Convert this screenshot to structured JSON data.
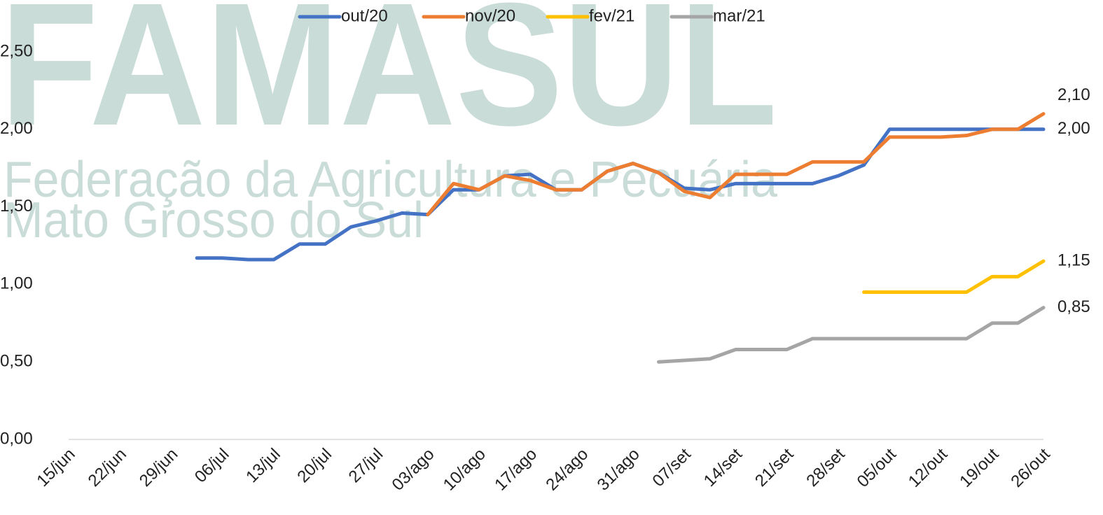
{
  "chart_data": {
    "type": "line",
    "watermark": {
      "title": "FAMASUL",
      "lines": [
        "Federação da Agricultura e Pecuária",
        "Mato Grosso do Sul"
      ]
    },
    "categories": [
      "15/jun",
      null,
      "22/jun",
      null,
      "29/jun",
      null,
      "06/jul",
      null,
      "13/jul",
      null,
      "20/jul",
      null,
      "27/jul",
      null,
      "03/ago",
      null,
      "10/ago",
      null,
      "17/ago",
      null,
      "24/ago",
      null,
      "31/ago",
      null,
      "07/set",
      null,
      "14/set",
      null,
      "21/set",
      null,
      "28/set",
      null,
      "05/out",
      null,
      "12/out",
      null,
      "19/out",
      null,
      "26/out"
    ],
    "series": [
      {
        "name": "out/20",
        "color": "#4472c4",
        "values": [
          null,
          null,
          null,
          null,
          null,
          1.17,
          1.17,
          1.16,
          1.16,
          1.26,
          1.26,
          1.37,
          1.41,
          1.46,
          1.45,
          1.61,
          1.61,
          1.7,
          1.71,
          1.61,
          1.61,
          1.73,
          1.78,
          1.72,
          1.62,
          1.61,
          1.65,
          1.65,
          1.65,
          1.65,
          1.7,
          1.77,
          2.0,
          2.0,
          2.0,
          2.0,
          2.0,
          2.0,
          2.0
        ],
        "value_labels": [
          null,
          null,
          null,
          null,
          null,
          null,
          null,
          null,
          null,
          null,
          null,
          null,
          null,
          null,
          null,
          null,
          null,
          null,
          null,
          null,
          null,
          null,
          null,
          null,
          null,
          null,
          null,
          null,
          null,
          null,
          null,
          null,
          null,
          null,
          null,
          null,
          null,
          null,
          "2,00"
        ]
      },
      {
        "name": "nov/20",
        "color": "#ed7d31",
        "values": [
          null,
          null,
          null,
          null,
          null,
          null,
          null,
          null,
          null,
          null,
          null,
          null,
          null,
          null,
          1.45,
          1.65,
          1.61,
          1.7,
          1.67,
          1.61,
          1.61,
          1.73,
          1.78,
          1.72,
          1.6,
          1.56,
          1.71,
          1.71,
          1.71,
          1.79,
          1.79,
          1.79,
          1.95,
          1.95,
          1.95,
          1.96,
          2.0,
          2.0,
          2.1
        ],
        "value_labels": [
          null,
          null,
          null,
          null,
          null,
          null,
          null,
          null,
          null,
          null,
          null,
          null,
          null,
          null,
          null,
          null,
          null,
          null,
          null,
          null,
          null,
          null,
          null,
          null,
          null,
          null,
          null,
          null,
          null,
          null,
          null,
          null,
          null,
          null,
          null,
          null,
          null,
          null,
          "2,10"
        ]
      },
      {
        "name": "fev/21",
        "color": "#ffc000",
        "values": [
          null,
          null,
          null,
          null,
          null,
          null,
          null,
          null,
          null,
          null,
          null,
          null,
          null,
          null,
          null,
          null,
          null,
          null,
          null,
          null,
          null,
          null,
          null,
          null,
          null,
          null,
          null,
          null,
          null,
          null,
          null,
          0.95,
          0.95,
          0.95,
          0.95,
          0.95,
          1.05,
          1.05,
          1.15
        ],
        "value_labels": [
          null,
          null,
          null,
          null,
          null,
          null,
          null,
          null,
          null,
          null,
          null,
          null,
          null,
          null,
          null,
          null,
          null,
          null,
          null,
          null,
          null,
          null,
          null,
          null,
          null,
          null,
          null,
          null,
          null,
          null,
          null,
          null,
          null,
          null,
          null,
          null,
          null,
          null,
          "1,15"
        ]
      },
      {
        "name": "mar/21",
        "color": "#a5a5a5",
        "values": [
          null,
          null,
          null,
          null,
          null,
          null,
          null,
          null,
          null,
          null,
          null,
          null,
          null,
          null,
          null,
          null,
          null,
          null,
          null,
          null,
          null,
          null,
          null,
          0.5,
          0.51,
          0.52,
          0.58,
          0.58,
          0.58,
          0.65,
          0.65,
          0.65,
          0.65,
          0.65,
          0.65,
          0.65,
          0.75,
          0.75,
          0.85
        ],
        "value_labels": [
          null,
          null,
          null,
          null,
          null,
          null,
          null,
          null,
          null,
          null,
          null,
          null,
          null,
          null,
          null,
          null,
          null,
          null,
          null,
          null,
          null,
          null,
          null,
          null,
          null,
          null,
          null,
          null,
          null,
          null,
          null,
          null,
          null,
          null,
          null,
          null,
          null,
          null,
          "0,85"
        ]
      }
    ],
    "ylim": [
      0,
      2.5
    ],
    "yticks": [
      {
        "value": 0,
        "label": "0,00"
      },
      {
        "value": 0.5,
        "label": "0,50"
      },
      {
        "value": 1,
        "label": "1,00"
      },
      {
        "value": 1.5,
        "label": "1,50"
      },
      {
        "value": 2,
        "label": "2,00"
      },
      {
        "value": 2.5,
        "label": "2,50"
      }
    ],
    "grid": false,
    "legend": "top"
  }
}
